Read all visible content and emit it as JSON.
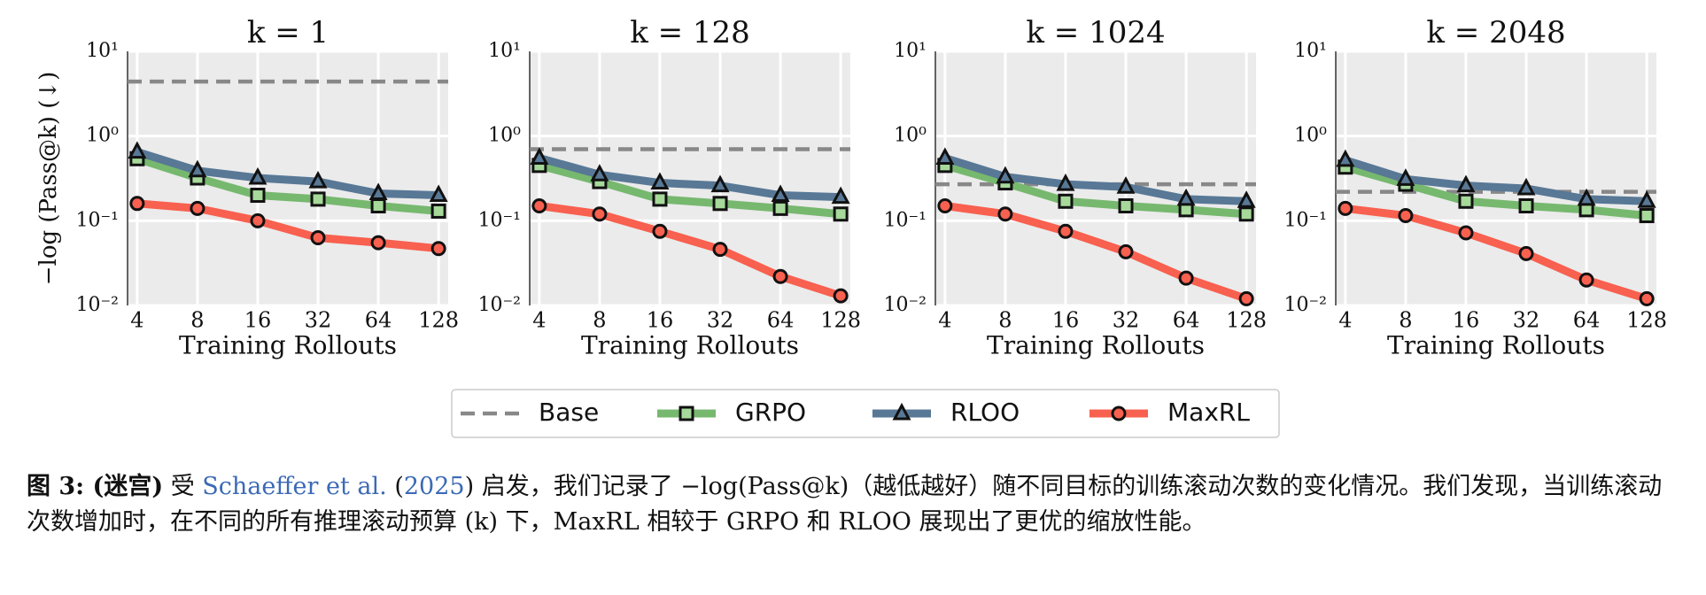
{
  "chart_data": [
    {
      "type": "line",
      "title": "k = 1",
      "ylabel": "−log (Pass@k) (↓)",
      "xlabel": "Training Rollouts",
      "categories": [
        "4",
        "8",
        "16",
        "32",
        "64",
        "128"
      ],
      "log_y": true,
      "grid": true,
      "ylim": [
        0.01,
        10
      ],
      "yticks": [
        {
          "value": 10,
          "label": "10¹"
        },
        {
          "value": 1,
          "label": "10⁰"
        },
        {
          "value": 0.1,
          "label": "10⁻¹"
        },
        {
          "value": 0.01,
          "label": "10⁻²"
        }
      ],
      "reference_line": {
        "name": "Base",
        "value": 4.4,
        "color": "#888888"
      },
      "series": [
        {
          "name": "GRPO",
          "color": "#77b86f",
          "marker": "square",
          "values": [
            0.54,
            0.32,
            0.2,
            0.18,
            0.15,
            0.13
          ]
        },
        {
          "name": "RLOO",
          "color": "#587896",
          "marker": "triangle",
          "values": [
            0.65,
            0.39,
            0.32,
            0.29,
            0.21,
            0.2
          ]
        },
        {
          "name": "MaxRL",
          "color": "#f8604f",
          "marker": "circle",
          "values": [
            0.16,
            0.14,
            0.1,
            0.063,
            0.055,
            0.047
          ]
        }
      ]
    },
    {
      "type": "line",
      "title": "k = 128",
      "xlabel": "Training Rollouts",
      "categories": [
        "4",
        "8",
        "16",
        "32",
        "64",
        "128"
      ],
      "log_y": true,
      "grid": true,
      "ylim": [
        0.01,
        10
      ],
      "yticks": [
        {
          "value": 10,
          "label": "10¹"
        },
        {
          "value": 1,
          "label": "10⁰"
        },
        {
          "value": 0.1,
          "label": "10⁻¹"
        },
        {
          "value": 0.01,
          "label": "10⁻²"
        }
      ],
      "reference_line": {
        "name": "Base",
        "value": 0.7,
        "color": "#888888"
      },
      "series": [
        {
          "name": "GRPO",
          "color": "#77b86f",
          "marker": "square",
          "values": [
            0.45,
            0.29,
            0.18,
            0.16,
            0.14,
            0.12
          ]
        },
        {
          "name": "RLOO",
          "color": "#587896",
          "marker": "triangle",
          "values": [
            0.55,
            0.35,
            0.28,
            0.26,
            0.2,
            0.19
          ]
        },
        {
          "name": "MaxRL",
          "color": "#f8604f",
          "marker": "circle",
          "values": [
            0.15,
            0.12,
            0.075,
            0.046,
            0.022,
            0.013
          ]
        }
      ]
    },
    {
      "type": "line",
      "title": "k = 1024",
      "xlabel": "Training Rollouts",
      "categories": [
        "4",
        "8",
        "16",
        "32",
        "64",
        "128"
      ],
      "log_y": true,
      "grid": true,
      "ylim": [
        0.01,
        10
      ],
      "yticks": [
        {
          "value": 10,
          "label": "10¹"
        },
        {
          "value": 1,
          "label": "10⁰"
        },
        {
          "value": 0.1,
          "label": "10⁻¹"
        },
        {
          "value": 0.01,
          "label": "10⁻²"
        }
      ],
      "reference_line": {
        "name": "Base",
        "value": 0.27,
        "color": "#888888"
      },
      "series": [
        {
          "name": "GRPO",
          "color": "#77b86f",
          "marker": "square",
          "values": [
            0.45,
            0.28,
            0.17,
            0.15,
            0.135,
            0.12
          ]
        },
        {
          "name": "RLOO",
          "color": "#587896",
          "marker": "triangle",
          "values": [
            0.55,
            0.33,
            0.27,
            0.25,
            0.18,
            0.17
          ]
        },
        {
          "name": "MaxRL",
          "color": "#f8604f",
          "marker": "circle",
          "values": [
            0.15,
            0.12,
            0.075,
            0.043,
            0.021,
            0.012
          ]
        }
      ]
    },
    {
      "type": "line",
      "title": "k = 2048",
      "xlabel": "Training Rollouts",
      "categories": [
        "4",
        "8",
        "16",
        "32",
        "64",
        "128"
      ],
      "log_y": true,
      "grid": true,
      "ylim": [
        0.01,
        10
      ],
      "yticks": [
        {
          "value": 10,
          "label": "10¹"
        },
        {
          "value": 1,
          "label": "10⁰"
        },
        {
          "value": 0.1,
          "label": "10⁻¹"
        },
        {
          "value": 0.01,
          "label": "10⁻²"
        }
      ],
      "reference_line": {
        "name": "Base",
        "value": 0.22,
        "color": "#888888"
      },
      "series": [
        {
          "name": "GRPO",
          "color": "#77b86f",
          "marker": "square",
          "values": [
            0.43,
            0.27,
            0.17,
            0.15,
            0.135,
            0.115
          ]
        },
        {
          "name": "RLOO",
          "color": "#587896",
          "marker": "triangle",
          "values": [
            0.52,
            0.31,
            0.26,
            0.24,
            0.18,
            0.17
          ]
        },
        {
          "name": "MaxRL",
          "color": "#f8604f",
          "marker": "circle",
          "values": [
            0.14,
            0.115,
            0.072,
            0.041,
            0.02,
            0.012
          ]
        }
      ]
    }
  ],
  "legend": {
    "position": "bottom"
  },
  "caption": {
    "parts": [
      {
        "text": "图 3:",
        "bold": true
      },
      {
        "text": " (迷宫)",
        "bold": true
      },
      {
        "text": " 受 "
      },
      {
        "text": "Schaeffer et al.",
        "link": true
      },
      {
        "text": " ("
      },
      {
        "text": "2025",
        "link": true
      },
      {
        "text": ") 启发，我们记录了 −log(Pass@k)（越低越好）随不同目标的训练滚动次数的变化情况。我们发现，当训练滚动次数增加时，在不同的所有推理滚动预算 (k) 下，MaxRL 相较于 GRPO 和 RLOO 展现出了更优的缩放性能。"
      }
    ]
  }
}
